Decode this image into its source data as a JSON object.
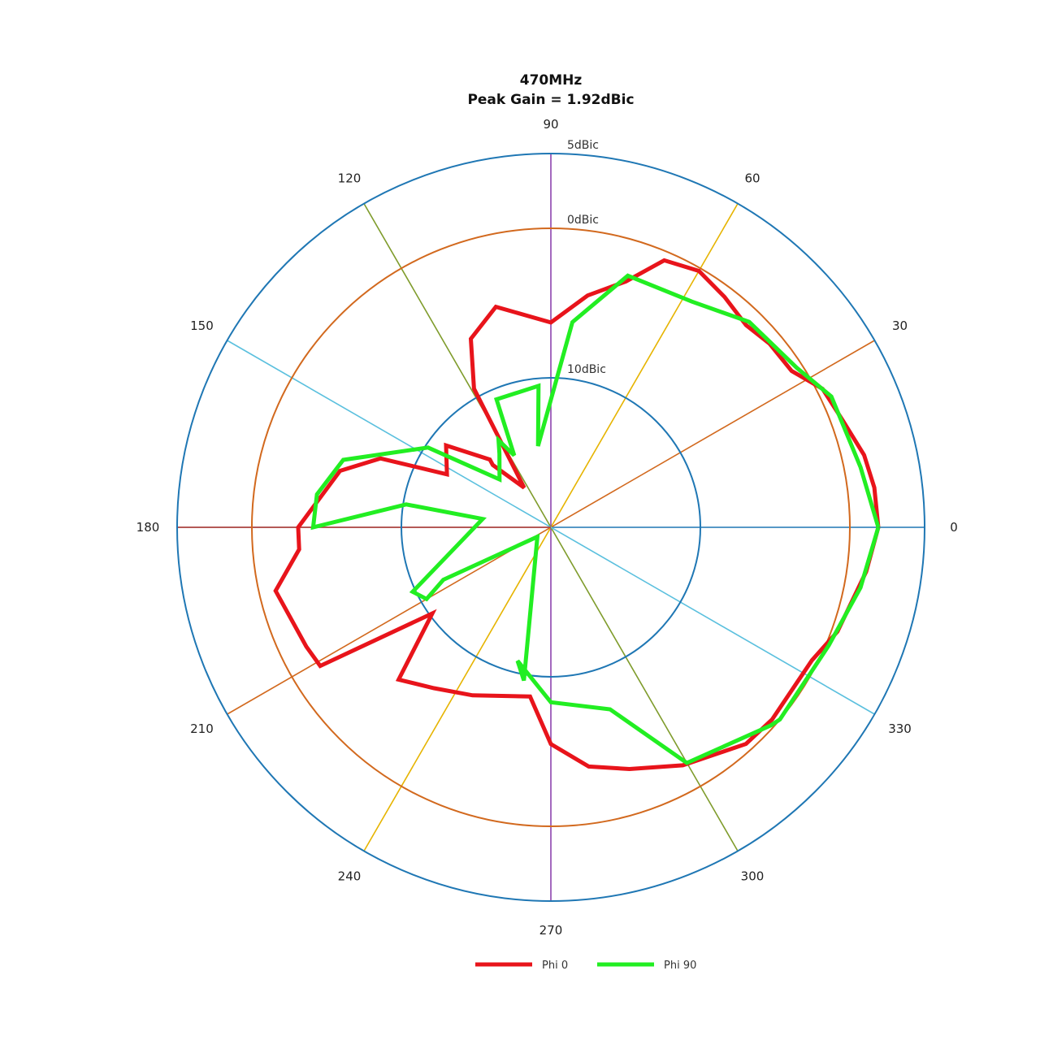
{
  "chart_data": {
    "type": "polar-line",
    "title": "470MHz",
    "subtitle": "Peak Gain = 1.92dBic",
    "angle_labels": [
      "0",
      "30",
      "60",
      "90",
      "120",
      "150",
      "180",
      "210",
      "240",
      "270",
      "300",
      "330"
    ],
    "rings": [
      {
        "label": "5dBic",
        "db": 5,
        "color": "#1f77b4"
      },
      {
        "label": "0dBic",
        "db": 0,
        "color": "#d2691e"
      },
      {
        "label": "10dBic",
        "db": -10,
        "color": "#1f77b4"
      }
    ],
    "r_range_db": [
      -20,
      5
    ],
    "spoke_colors": [
      "#1f77b4",
      "#d2691e",
      "#e6b400",
      "#8e44ad",
      "#7f9c2c",
      "#5bc0de"
    ],
    "series": [
      {
        "name": "Phi 0",
        "color": "#e8141b",
        "points": [
          [
            0,
            1.9
          ],
          [
            7,
            1.8
          ],
          [
            13,
            1.5
          ],
          [
            20,
            0.8
          ],
          [
            27,
            0.4
          ],
          [
            33,
            -0.8
          ],
          [
            40,
            -0.9
          ],
          [
            46,
            -1.2
          ],
          [
            53,
            -0.7
          ],
          [
            60,
            -0.2
          ],
          [
            67,
            -0.6
          ],
          [
            73,
            -2.8
          ],
          [
            81,
            -4.3
          ],
          [
            90,
            -6.3
          ],
          [
            104,
            -4.8
          ],
          [
            113,
            -6.3
          ],
          [
            119,
            -9.4
          ],
          [
            124,
            -16.8
          ],
          [
            133,
            -14.3
          ],
          [
            132,
            -13.9
          ],
          [
            142,
            -11.1
          ],
          [
            153,
            -12.2
          ],
          [
            158,
            -7.7
          ],
          [
            165,
            -5.4
          ],
          [
            180,
            -3.1
          ],
          [
            185,
            -3.1
          ],
          [
            193,
            -1.1
          ],
          [
            206,
            -1.8
          ],
          [
            211,
            -2.0
          ],
          [
            216,
            -10.2
          ],
          [
            225,
            -5.6
          ],
          [
            234,
            -6.7
          ],
          [
            245,
            -7.6
          ],
          [
            263,
            -8.6
          ],
          [
            270,
            -5.5
          ],
          [
            279,
            -3.8
          ],
          [
            288,
            -3.0
          ],
          [
            299,
            -1.8
          ],
          [
            312,
            -0.5
          ],
          [
            319,
            -0.4
          ],
          [
            333,
            -0.4
          ],
          [
            340,
            0.4
          ],
          [
            352,
            1.3
          ],
          [
            0,
            1.9
          ]
        ]
      },
      {
        "name": "Phi 90",
        "color": "#22ee22",
        "points": [
          [
            0,
            1.9
          ],
          [
            11,
            1.1
          ],
          [
            25,
            0.7
          ],
          [
            33,
            -0.4
          ],
          [
            46,
            -0.9
          ],
          [
            58,
            -2.2
          ],
          [
            73,
            -2.4
          ],
          [
            84,
            -6.2
          ],
          [
            99,
            -14.5
          ],
          [
            95,
            -10.5
          ],
          [
            113,
            -10.7
          ],
          [
            117,
            -14.6
          ],
          [
            121,
            -13.2
          ],
          [
            125,
            -14.0
          ],
          [
            137,
            -15.3
          ],
          [
            147,
            -10.2
          ],
          [
            162,
            -5.4
          ],
          [
            172,
            -4.2
          ],
          [
            180,
            -4.1
          ],
          [
            171,
            -10.2
          ],
          [
            173,
            -15.4
          ],
          [
            205,
            -9.8
          ],
          [
            210,
            -10.4
          ],
          [
            206,
            -12.0
          ],
          [
            215,
            -18.9
          ],
          [
            260,
            -9.6
          ],
          [
            256,
            -10.8
          ],
          [
            270,
            -8.3
          ],
          [
            288,
            -7.2
          ],
          [
            300,
            -1.8
          ],
          [
            318,
            -0.2
          ],
          [
            320,
            0.0
          ],
          [
            337,
            0.2
          ],
          [
            349,
            1.1
          ],
          [
            360,
            1.9
          ]
        ]
      }
    ],
    "legend": {
      "position": "bottom-center",
      "entries": [
        "Phi 0",
        "Phi 90"
      ]
    }
  }
}
